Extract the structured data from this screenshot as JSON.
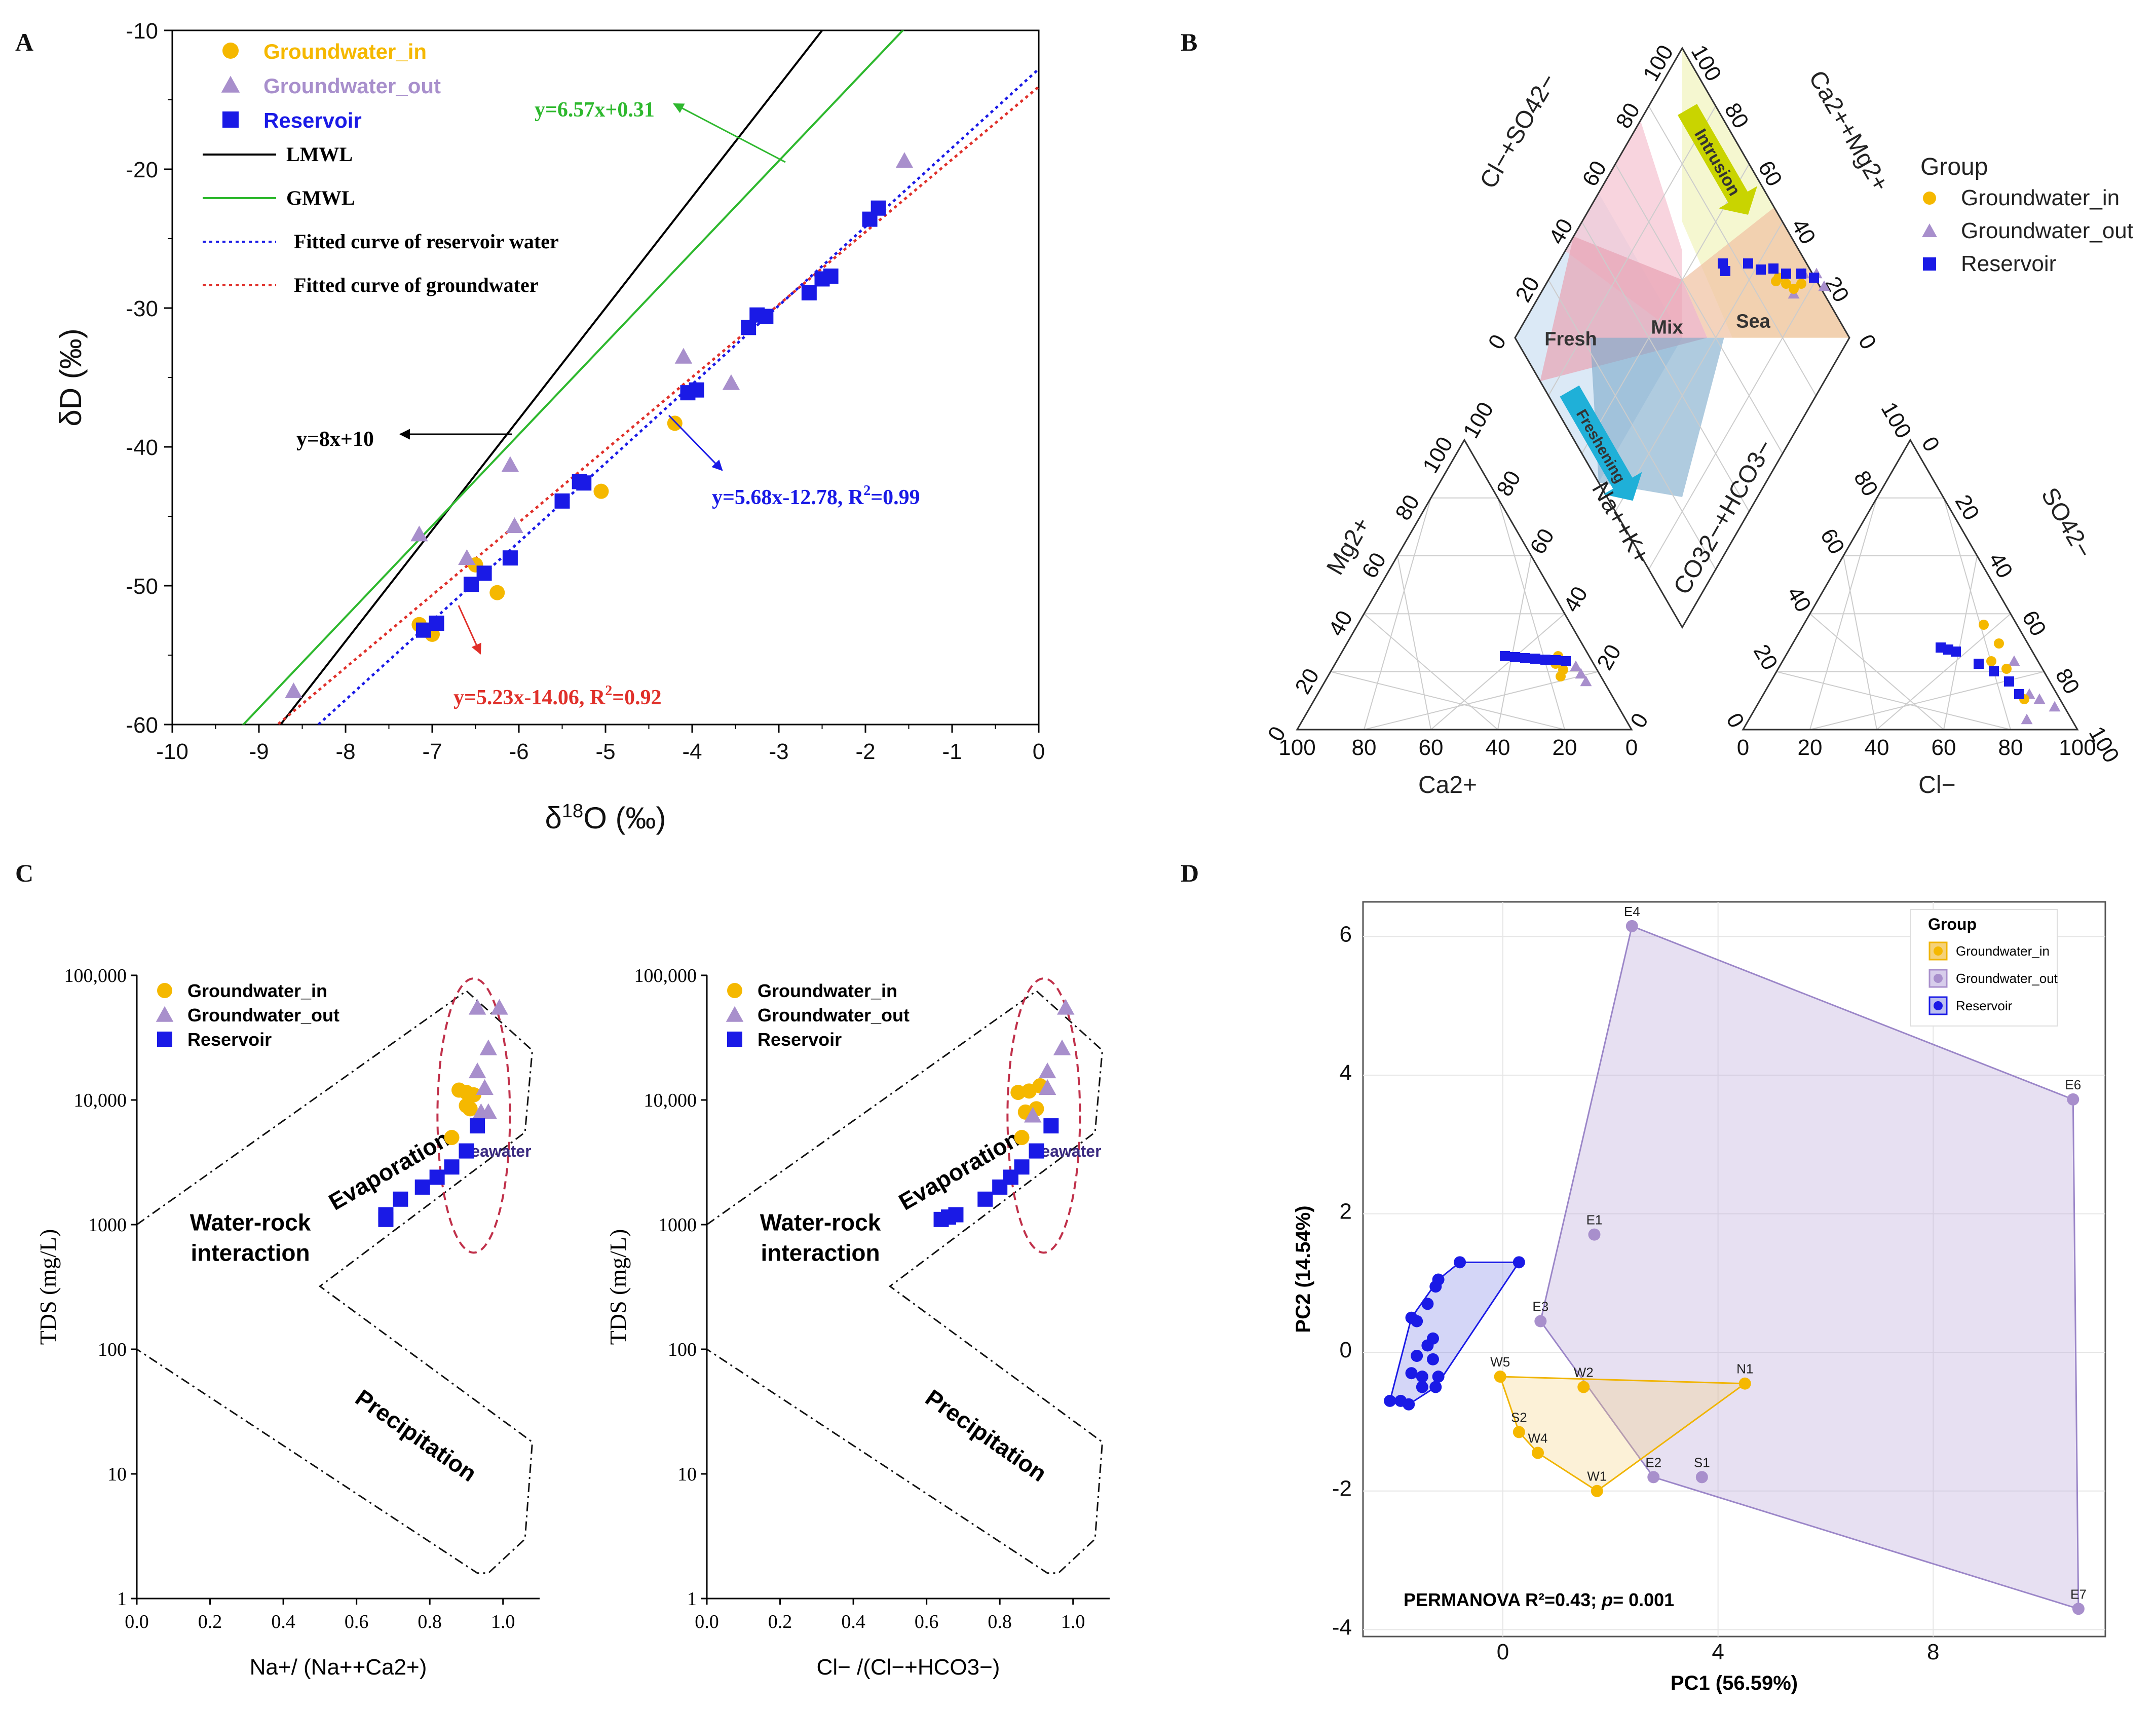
{
  "panels": {
    "A": "A",
    "B": "B",
    "C": "C",
    "D": "D"
  },
  "chart_data": [
    {
      "panel": "A",
      "type": "scatter",
      "xlabel": "δ18O (‰)",
      "ylabel": "δD (‰)",
      "xlim": [
        -10,
        0
      ],
      "ylim": [
        -60,
        -10
      ],
      "xticks": [
        -10,
        -9,
        -8,
        -7,
        -6,
        -5,
        -4,
        -3,
        -2,
        -1,
        0
      ],
      "yticks": [
        -60,
        -50,
        -40,
        -30,
        -20,
        -10
      ],
      "series": [
        {
          "name": "Groundwater_in",
          "color": "#f5b800",
          "marker": "circle",
          "points": [
            [
              -7.15,
              -52.8
            ],
            [
              -7.0,
              -53.5
            ],
            [
              -6.5,
              -48.5
            ],
            [
              -6.25,
              -50.5
            ],
            [
              -5.05,
              -43.2
            ],
            [
              -4.2,
              -38.3
            ]
          ]
        },
        {
          "name": "Groundwater_out",
          "color": "#a88fcc",
          "marker": "triangle",
          "points": [
            [
              -8.6,
              -57.6
            ],
            [
              -6.6,
              -48.0
            ],
            [
              -6.1,
              -41.3
            ],
            [
              -6.05,
              -45.7
            ],
            [
              -4.1,
              -33.5
            ],
            [
              -3.55,
              -35.4
            ],
            [
              -1.55,
              -19.4
            ],
            [
              -7.15,
              -46.3
            ]
          ]
        },
        {
          "name": "Reservoir",
          "color": "#1a1ae6",
          "marker": "square",
          "points": [
            [
              -7.1,
              -53.2
            ],
            [
              -6.95,
              -52.7
            ],
            [
              -6.55,
              -49.9
            ],
            [
              -6.4,
              -49.1
            ],
            [
              -6.1,
              -48.0
            ],
            [
              -5.5,
              -43.9
            ],
            [
              -5.3,
              -42.5
            ],
            [
              -5.25,
              -42.6
            ],
            [
              -4.05,
              -36.1
            ],
            [
              -3.95,
              -35.9
            ],
            [
              -3.35,
              -31.4
            ],
            [
              -3.25,
              -30.5
            ],
            [
              -3.15,
              -30.6
            ],
            [
              -2.65,
              -28.9
            ],
            [
              -2.5,
              -27.9
            ],
            [
              -2.4,
              -27.7
            ],
            [
              -1.95,
              -23.6
            ],
            [
              -1.85,
              -22.8
            ]
          ]
        }
      ],
      "lines": [
        {
          "name": "LMWL",
          "slope": 8,
          "intercept": 10,
          "color": "#000000",
          "style": "solid"
        },
        {
          "name": "GMWL",
          "slope": 6.57,
          "intercept": 0.31,
          "color": "#2eb82e",
          "style": "solid"
        },
        {
          "name": "Fitted curve of reservoir water",
          "slope": 5.68,
          "intercept": -12.78,
          "color": "#1a1ae6",
          "style": "dotted"
        },
        {
          "name": "Fitted curve of groundwater",
          "slope": 5.23,
          "intercept": -14.06,
          "color": "#e0302a",
          "style": "dotted"
        }
      ],
      "annotations": [
        {
          "text": "y=6.57x+0.31",
          "color": "#2eb82e"
        },
        {
          "text": "y=8x+10",
          "color": "#000000"
        },
        {
          "text": "y=5.68x-12.78, R",
          "sup": "2",
          "tail": "=0.99",
          "color": "#1a1ae6"
        },
        {
          "text": "y=5.23x-14.06, R",
          "sup": "2",
          "tail": "=0.92",
          "color": "#e0302a"
        }
      ]
    },
    {
      "panel": "B",
      "type": "piper",
      "legend_title": "Group",
      "legend": [
        "Groundwater_in",
        "Groundwater_out",
        "Reservoir"
      ],
      "left_axes": {
        "bottom": "Ca2+",
        "left": "Mg2+",
        "right": "Na++K+"
      },
      "right_axes": {
        "bottom": "Cl−",
        "right": "SO42−",
        "left": "CO32−+HCO3−"
      },
      "diamond_axes": {
        "left": "Cl−+SO42−",
        "right": "Ca2++Mg2+"
      },
      "zones": [
        "Fresh",
        "Mix",
        "Sea"
      ],
      "arrows": [
        "Intrusion",
        "Freshening"
      ],
      "tick_labels": [
        "0",
        "20",
        "40",
        "60",
        "80",
        "100"
      ]
    },
    {
      "panel": "C-left",
      "type": "scatter",
      "xlabel": "Na+/ (Na++Ca2+)",
      "ylabel": "TDS (mg/L)",
      "yscale": "log",
      "xlim": [
        0,
        1.1
      ],
      "ylim": [
        1,
        100000
      ],
      "xticks": [
        "0.0",
        "0.2",
        "0.4",
        "0.6",
        "0.8",
        "1.0"
      ],
      "yticks": [
        "1",
        "10",
        "100",
        "1000",
        "10,000",
        "100,000"
      ],
      "region_labels": [
        "Evaporation",
        "Water-rock interaction",
        "Precipitation",
        "Seawater"
      ],
      "series": [
        {
          "name": "Groundwater_in",
          "points": [
            [
              0.86,
              5000
            ],
            [
              0.88,
              12000
            ],
            [
              0.9,
              11500
            ],
            [
              0.91,
              8500
            ],
            [
              0.92,
              11000
            ],
            [
              0.9,
              9000
            ]
          ]
        },
        {
          "name": "Groundwater_out",
          "points": [
            [
              0.93,
              55000
            ],
            [
              0.99,
              55000
            ],
            [
              0.96,
              26000
            ],
            [
              0.93,
              17000
            ],
            [
              0.95,
              12500
            ],
            [
              0.94,
              8000
            ],
            [
              0.96,
              8000
            ]
          ]
        },
        {
          "name": "Reservoir",
          "points": [
            [
              0.68,
              1100
            ],
            [
              0.68,
              1200
            ],
            [
              0.72,
              1600
            ],
            [
              0.78,
              2000
            ],
            [
              0.82,
              2400
            ],
            [
              0.86,
              2900
            ],
            [
              0.9,
              3900
            ],
            [
              0.93,
              6200
            ]
          ]
        }
      ]
    },
    {
      "panel": "C-right",
      "type": "scatter",
      "xlabel": "Cl− /(Cl−+HCO3−)",
      "ylabel": "TDS (mg/L)",
      "yscale": "log",
      "xlim": [
        0,
        1.1
      ],
      "ylim": [
        1,
        100000
      ],
      "xticks": [
        "0.0",
        "0.2",
        "0.4",
        "0.6",
        "0.8",
        "1.0"
      ],
      "yticks": [
        "1",
        "10",
        "100",
        "1000",
        "10,000",
        "100,000"
      ],
      "region_labels": [
        "Evaporation",
        "Water-rock interaction",
        "Precipitation",
        "Seawater"
      ],
      "series": [
        {
          "name": "Groundwater_in",
          "points": [
            [
              0.86,
              5000
            ],
            [
              0.85,
              11500
            ],
            [
              0.88,
              11800
            ],
            [
              0.9,
              8500
            ],
            [
              0.91,
              13000
            ],
            [
              0.87,
              8000
            ]
          ]
        },
        {
          "name": "Groundwater_out",
          "points": [
            [
              0.98,
              55000
            ],
            [
              0.97,
              26000
            ],
            [
              0.93,
              17000
            ],
            [
              0.93,
              12500
            ],
            [
              0.89,
              7500
            ]
          ]
        },
        {
          "name": "Reservoir",
          "points": [
            [
              0.64,
              1100
            ],
            [
              0.66,
              1150
            ],
            [
              0.68,
              1200
            ],
            [
              0.76,
              1600
            ],
            [
              0.8,
              2000
            ],
            [
              0.83,
              2400
            ],
            [
              0.86,
              2900
            ],
            [
              0.9,
              3900
            ],
            [
              0.94,
              6200
            ]
          ]
        }
      ]
    },
    {
      "panel": "D",
      "type": "scatter",
      "xlabel": "PC1 (56.59%)",
      "ylabel": "PC2 (14.54%)",
      "xlim": [
        -2.6,
        11.2
      ],
      "ylim": [
        -4.1,
        6.5
      ],
      "xticks": [
        0,
        4,
        8
      ],
      "yticks": [
        -4,
        -2,
        0,
        2,
        4,
        6
      ],
      "legend_title": "Group",
      "legend": [
        "Groundwater_in",
        "Groundwater_out",
        "Reservoir"
      ],
      "annotation": "PERMANOVA R²=0.43; ",
      "annotation_p": "p",
      "annotation_tail": "= 0.001",
      "labeled_points": [
        {
          "label": "E4",
          "group": "Groundwater_out",
          "x": 2.4,
          "y": 6.15
        },
        {
          "label": "E6",
          "group": "Groundwater_out",
          "x": 10.6,
          "y": 3.65
        },
        {
          "label": "E1",
          "group": "Groundwater_out",
          "x": 1.7,
          "y": 1.7
        },
        {
          "label": "E3",
          "group": "Groundwater_out",
          "x": 0.7,
          "y": 0.45
        },
        {
          "label": "E2",
          "group": "Groundwater_out",
          "x": 2.8,
          "y": -1.8
        },
        {
          "label": "S1",
          "group": "Groundwater_out",
          "x": 3.7,
          "y": -1.8
        },
        {
          "label": "E7",
          "group": "Groundwater_out",
          "x": 10.7,
          "y": -3.7
        },
        {
          "label": "W5",
          "group": "Groundwater_in",
          "x": -0.05,
          "y": -0.35
        },
        {
          "label": "W2",
          "group": "Groundwater_in",
          "x": 1.5,
          "y": -0.5
        },
        {
          "label": "N1",
          "group": "Groundwater_in",
          "x": 4.5,
          "y": -0.45
        },
        {
          "label": "S2",
          "group": "Groundwater_in",
          "x": 0.3,
          "y": -1.15
        },
        {
          "label": "W4",
          "group": "Groundwater_in",
          "x": 0.65,
          "y": -1.45
        },
        {
          "label": "W1",
          "group": "Groundwater_in",
          "x": 1.75,
          "y": -2.0
        }
      ],
      "reservoir_points": [
        [
          -2.1,
          -0.7
        ],
        [
          -1.9,
          -0.7
        ],
        [
          -1.75,
          -0.75
        ],
        [
          -1.7,
          -0.3
        ],
        [
          -1.5,
          -0.35
        ],
        [
          -1.6,
          -0.05
        ],
        [
          -1.4,
          0.1
        ],
        [
          -1.3,
          -0.1
        ],
        [
          -1.2,
          -0.35
        ],
        [
          -1.25,
          -0.5
        ],
        [
          -1.5,
          -0.5
        ],
        [
          -1.3,
          0.2
        ],
        [
          -1.6,
          0.45
        ],
        [
          -1.7,
          0.5
        ],
        [
          -1.4,
          0.7
        ],
        [
          -1.25,
          0.95
        ],
        [
          -1.2,
          1.05
        ],
        [
          -0.8,
          1.3
        ],
        [
          0.3,
          1.3
        ]
      ]
    }
  ]
}
